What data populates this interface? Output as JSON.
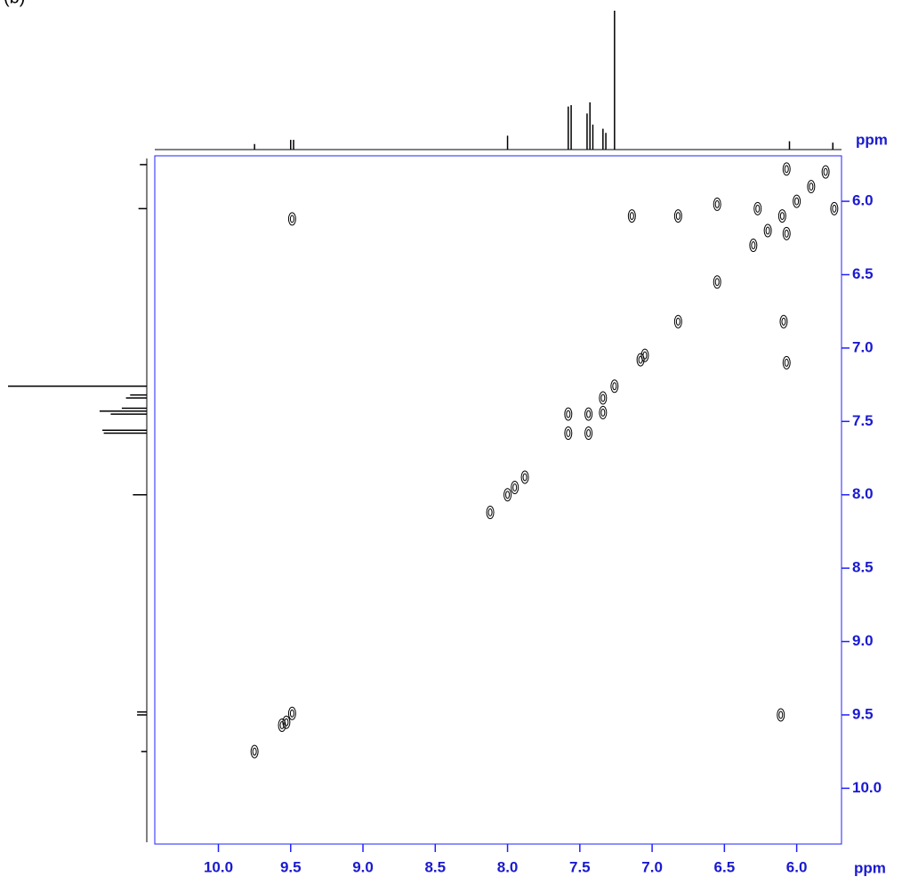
{
  "chart_data": {
    "type": "contour",
    "panel_label": "(b)",
    "x_label": "ppm",
    "y_label": "ppm",
    "xlim": [
      10.44,
      5.69
    ],
    "ylim": [
      5.69,
      10.38
    ],
    "xticks": [
      {
        "value": 10,
        "label": "10.0"
      },
      9.5,
      {
        "value": 9,
        "label": "9.0"
      },
      8.5,
      {
        "value": 8,
        "label": "8.0"
      },
      7.5,
      {
        "value": 7,
        "label": "7.0"
      },
      6.5,
      {
        "value": 6,
        "label": "6.0"
      }
    ],
    "yticks": [
      {
        "value": 6,
        "label": "6.0"
      },
      6.5,
      {
        "value": 7,
        "label": "7.0"
      },
      7.5,
      {
        "value": 8,
        "label": "8.0"
      },
      8.5,
      {
        "value": 9,
        "label": "9.0"
      },
      9.5,
      {
        "value": 10,
        "label": "10.0"
      }
    ],
    "axis_color": "#2020ff",
    "series": [
      {
        "color": "#000000",
        "x": [
          9.49,
          9.49,
          9.53,
          9.56,
          9.75,
          8.12,
          8.0,
          7.95,
          7.88,
          7.58,
          7.58,
          7.44,
          7.44,
          7.34,
          7.34,
          7.26,
          7.08,
          7.05,
          7.14,
          6.82,
          6.82,
          6.55,
          6.55,
          6.11,
          6.07,
          6.09,
          6.07,
          6.07,
          5.74,
          6.3,
          6.2,
          6.1,
          6.0,
          5.9,
          5.8,
          6.27
        ],
        "values": [
          6.12,
          9.49,
          9.55,
          9.57,
          9.75,
          8.12,
          8.0,
          7.95,
          7.88,
          7.45,
          7.58,
          7.45,
          7.58,
          7.34,
          7.44,
          7.26,
          7.08,
          7.05,
          6.1,
          6.1,
          6.82,
          6.55,
          6.02,
          9.5,
          7.1,
          6.82,
          6.22,
          5.78,
          6.05,
          6.3,
          6.2,
          6.1,
          6.0,
          5.9,
          5.8,
          6.05
        ]
      }
    ],
    "projection": {
      "color": "#000000",
      "x": [
        9.75,
        9.5,
        9.48,
        8.0,
        7.58,
        7.56,
        7.45,
        7.43,
        7.41,
        7.34,
        7.32,
        7.26,
        6.05,
        5.75
      ],
      "height": [
        4,
        7,
        7,
        10,
        31,
        32,
        26,
        34,
        18,
        15,
        12,
        100,
        6,
        5
      ]
    }
  }
}
